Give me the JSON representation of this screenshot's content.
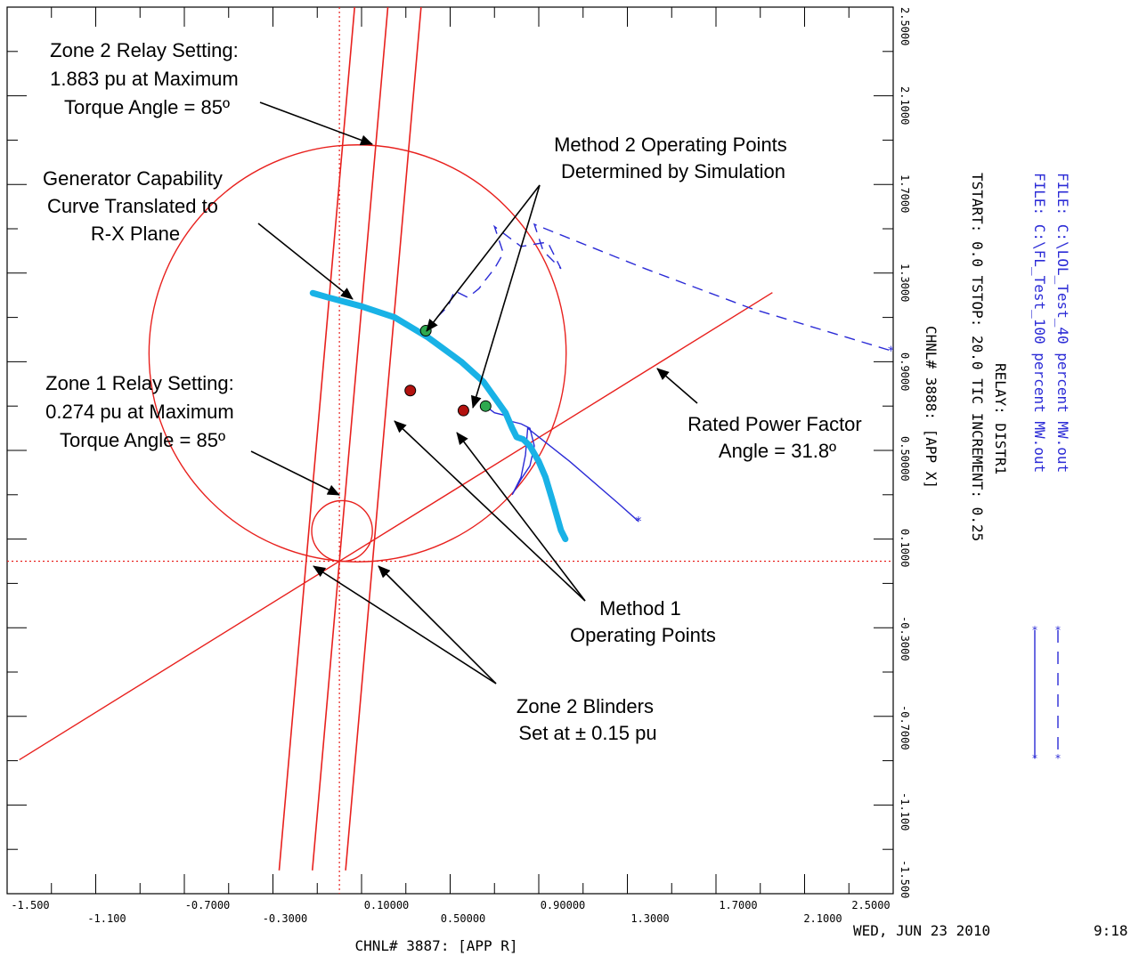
{
  "chart_data": {
    "type": "line",
    "x_ticks_top_row": [
      "-1.500",
      "-0.7000",
      "0.10000",
      "0.90000",
      "1.7000",
      "2.5000"
    ],
    "x_ticks_bottom_row": [
      "-1.100",
      "-0.3000",
      "0.50000",
      "1.3000",
      "2.1000"
    ],
    "y_ticks": [
      "2.5000",
      "2.1000",
      "1.7000",
      "1.3000",
      "0.9000",
      "0.50000",
      "0.1000",
      "-0.3000",
      "-0.7000",
      "-1.100",
      "-1.500"
    ],
    "x_axis_label": "CHNL# 3887: [APP R]",
    "y_axis_label": "CHNL# 3888: [APP X]",
    "xlim": [
      -1.5,
      2.5
    ],
    "ylim": [
      -1.5,
      2.5
    ],
    "grid": false,
    "header_lines": [
      "FILE: C:\\LOL_Test_40 percent MW.out",
      "FILE: C:\\FL_Test_100 percent MW.out"
    ],
    "relay_label": "RELAY: DISTR1",
    "tstart_line": "TSTART: 0.0  TSTOP: 20.0  TIC INCREMENT: 0.25",
    "date_text": "WED, JUN 23 2010",
    "time_text": "9:18",
    "colors": {
      "relay": "#e8211e",
      "trajectory": "#2b2bd6",
      "capability": "#19b2e6",
      "method1": "#b3120f",
      "method2": "#2ea94f"
    },
    "relay_characteristics": {
      "zone2_circle": {
        "reach": 1.883,
        "torque_angle_deg": 85
      },
      "zone1_circle": {
        "reach": 0.274,
        "torque_angle_deg": 85
      },
      "blinder_offset": 0.15,
      "blinder_angle_deg": 85,
      "rated_pf_angle_deg": 31.8
    },
    "capability_curve": {
      "x": [
        -0.12,
        -0.05,
        0.1,
        0.25,
        0.4,
        0.55,
        0.65,
        0.75,
        0.78,
        0.8,
        0.83,
        0.86,
        0.9,
        0.93,
        0.96,
        1.0,
        1.02
      ],
      "y": [
        1.21,
        1.19,
        1.15,
        1.1,
        1.01,
        0.9,
        0.81,
        0.67,
        0.6,
        0.56,
        0.55,
        0.52,
        0.45,
        0.38,
        0.28,
        0.14,
        0.1
      ]
    },
    "method1_points": [
      {
        "x": 0.32,
        "y": 0.77
      },
      {
        "x": 0.56,
        "y": 0.68
      }
    ],
    "method2_points": [
      {
        "x": 0.39,
        "y": 1.04
      },
      {
        "x": 0.66,
        "y": 0.7
      }
    ],
    "series": [
      {
        "name": "FILE: C:\\LOL_Test_40 percent MW.out",
        "style": "dashed",
        "x": [
          0.39,
          0.43,
          0.49,
          0.52,
          0.58,
          0.63,
          0.66,
          0.7,
          0.74,
          0.7,
          0.82,
          0.94,
          1.0,
          0.92,
          0.88,
          1.08,
          1.38,
          1.86,
          2.49
        ],
        "y": [
          1.04,
          1.09,
          1.15,
          1.22,
          1.19,
          1.23,
          1.27,
          1.32,
          1.39,
          1.51,
          1.42,
          1.44,
          1.32,
          1.4,
          1.52,
          1.44,
          1.32,
          1.14,
          0.95
        ]
      },
      {
        "name": "FILE: C:\\FL_Test_100 percent MW.out",
        "style": "solid",
        "x": [
          0.66,
          0.7,
          0.74,
          0.78,
          0.82,
          0.86,
          0.88,
          0.86,
          0.82,
          0.78,
          0.82,
          0.84,
          0.85,
          1.04,
          1.26,
          1.35
        ],
        "y": [
          0.7,
          0.67,
          0.66,
          0.63,
          0.62,
          0.6,
          0.52,
          0.43,
          0.37,
          0.3,
          0.38,
          0.48,
          0.6,
          0.45,
          0.26,
          0.18
        ]
      }
    ]
  },
  "annotations": {
    "zone2_relay": [
      "Zone 2 Relay Setting:",
      "1.883 pu at Maximum",
      "Torque Angle = 85º"
    ],
    "gen_capability": [
      "Generator Capability",
      "Curve Translated to",
      "R-X Plane"
    ],
    "method2": [
      "Method 2 Operating Points",
      "Determined by Simulation"
    ],
    "zone1_relay": [
      "Zone 1 Relay Setting:",
      "0.274 pu at Maximum",
      "Torque Angle = 85º"
    ],
    "rated_pf": [
      "Rated Power Factor",
      "Angle = 31.8º"
    ],
    "method1": [
      "Method 1",
      "Operating Points"
    ],
    "blinders": [
      "Zone 2 Blinders",
      "Set at ± 0.15 pu"
    ]
  }
}
